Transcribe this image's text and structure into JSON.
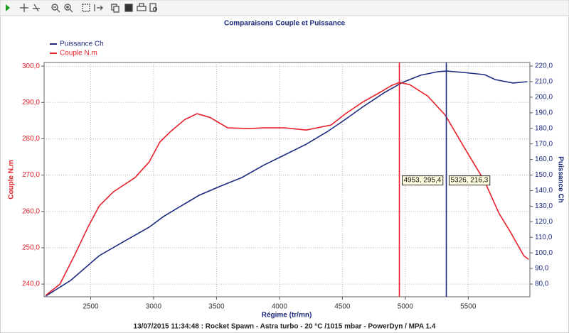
{
  "chart_data": {
    "type": "line",
    "title": "Comparaisons Couple et Puissance",
    "x_label": "Régime (tr/mn)",
    "y_label": "Couple N.m",
    "y2_label": "Puissance Ch",
    "footer": "13/07/2015 11:34:48 : Rocket Spawn - Astra turbo - 20 °C /1015 mbar - PowerDyn / MPA 1.4",
    "grid": true,
    "legend": "top-left",
    "xlim": [
      2130,
      5990
    ],
    "xticks": [
      2500,
      3000,
      3500,
      4000,
      4500,
      5000,
      5500
    ],
    "ylim": [
      236.5,
      301
    ],
    "yticks": [
      {
        "value": 240,
        "label": "240,0"
      },
      {
        "value": 250,
        "label": "250,0"
      },
      {
        "value": 260,
        "label": "260,0"
      },
      {
        "value": 270,
        "label": "270,0"
      },
      {
        "value": 280,
        "label": "280,0"
      },
      {
        "value": 290,
        "label": "290,0"
      },
      {
        "value": 300,
        "label": "300,0"
      }
    ],
    "y2lim": [
      71.8,
      222.3
    ],
    "y2ticks": [
      {
        "value": 80,
        "label": "80,0"
      },
      {
        "value": 90,
        "label": "90,0"
      },
      {
        "value": 100,
        "label": "100,0"
      },
      {
        "value": 110,
        "label": "110,0"
      },
      {
        "value": 120,
        "label": "120,0"
      },
      {
        "value": 130,
        "label": "130,0"
      },
      {
        "value": 140,
        "label": "140,0"
      },
      {
        "value": 150,
        "label": "150,0"
      },
      {
        "value": 160,
        "label": "160,0"
      },
      {
        "value": 170,
        "label": "170,0"
      },
      {
        "value": 180,
        "label": "180,0"
      },
      {
        "value": 190,
        "label": "190,0"
      },
      {
        "value": 200,
        "label": "200,0"
      },
      {
        "value": 210,
        "label": "210,0"
      },
      {
        "value": 220,
        "label": "220,0"
      }
    ],
    "series": [
      {
        "name": "Puissance Ch",
        "color": "#1c2a80",
        "axis": "y2",
        "x": [
          2143,
          2341,
          2568,
          2766,
          2965,
          3078,
          3220,
          3362,
          3532,
          3702,
          3872,
          4043,
          4213,
          4383,
          4525,
          4666,
          4837,
          4978,
          5120,
          5262,
          5330,
          5460,
          5630,
          5715,
          5857,
          5970
        ],
        "values": [
          72.3,
          82.3,
          98.2,
          107.4,
          116.5,
          123.3,
          130.2,
          137,
          142.9,
          148.4,
          156.2,
          163,
          169.8,
          178,
          185.8,
          194,
          203.1,
          209.5,
          214.1,
          216.4,
          216.8,
          215.9,
          214.5,
          211.3,
          209.1,
          210
        ]
      },
      {
        "name": "Couple N.m",
        "color": "#e8202a",
        "axis": "y",
        "x": [
          2143,
          2256,
          2370,
          2483,
          2568,
          2681,
          2852,
          2965,
          3050,
          3135,
          3249,
          3345,
          3447,
          3589,
          3759,
          3872,
          4043,
          4213,
          4411,
          4525,
          4666,
          4780,
          4893,
          4955,
          5035,
          5177,
          5318,
          5460,
          5630,
          5744,
          5829,
          5942,
          5980
        ],
        "values": [
          236.9,
          240,
          247.8,
          256,
          261.5,
          265.4,
          269.3,
          273.6,
          279.1,
          282,
          285.3,
          286.9,
          285.9,
          283,
          282.8,
          283,
          283,
          282.4,
          283.8,
          286.9,
          290.2,
          292.4,
          294.7,
          295.5,
          294.9,
          291.8,
          286.5,
          278.1,
          268.3,
          259.5,
          254.7,
          247.8,
          246.8
        ]
      }
    ],
    "cursors": [
      {
        "x": 4953,
        "label": "4953, 295,4",
        "color": "#e8202a"
      },
      {
        "x": 5326,
        "label": "5326, 216,3",
        "color": "#1c2a80"
      }
    ]
  }
}
